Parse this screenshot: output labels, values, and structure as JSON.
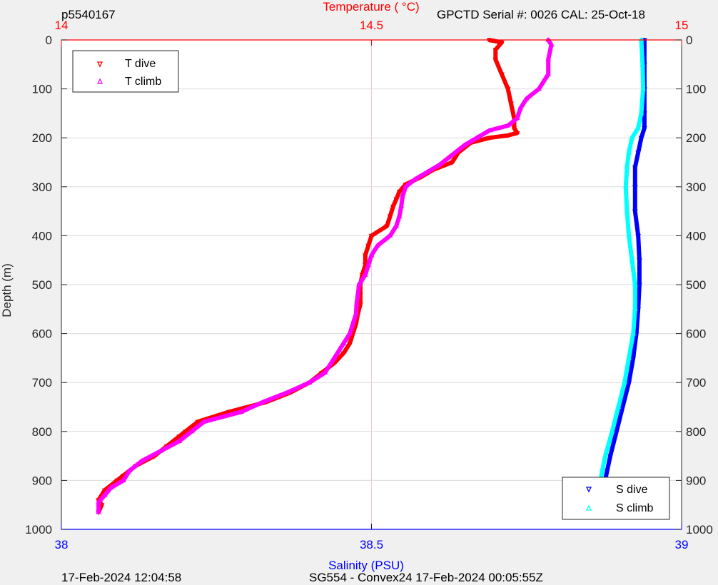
{
  "header": {
    "profile_id": "p5540167",
    "sensor_info": "GPCTD Serial #: 0026 CAL: 25-Oct-18"
  },
  "footer": {
    "plot_time": "17-Feb-2024 12:04:58",
    "mission": "SG554 - Convex24 17-Feb-2024 00:05:55Z"
  },
  "colors": {
    "t_dive": "#ff0000",
    "t_climb": "#ff00ff",
    "s_dive": "#0000ff",
    "s_climb": "#00ffff",
    "temperature_axis": "#ff0000",
    "salinity_axis": "#0000ff"
  },
  "chart_data": {
    "type": "line",
    "y_axis": {
      "label": "Depth (m)",
      "lim": [
        0,
        1000
      ],
      "reversed": true,
      "ticks": [
        0,
        100,
        200,
        300,
        400,
        500,
        600,
        700,
        800,
        900,
        1000
      ]
    },
    "x_top_axis": {
      "label": "Temperature (    °C)",
      "lim": [
        14,
        15
      ],
      "ticks": [
        14,
        14.5,
        15
      ],
      "tick_labels": [
        "14",
        "14.5",
        "15"
      ]
    },
    "x_bottom_axis": {
      "label": "Salinity (PSU)",
      "lim": [
        38,
        39
      ],
      "ticks": [
        38,
        38.5,
        39
      ],
      "tick_labels": [
        "38",
        "38.5",
        "39"
      ]
    },
    "grid": true,
    "legends": [
      {
        "position": "top-left",
        "entries": [
          "T dive",
          "T climb"
        ]
      },
      {
        "position": "bottom-right",
        "entries": [
          "S dive",
          "S climb"
        ]
      }
    ],
    "series": [
      {
        "name": "T dive",
        "axis": "temperature",
        "marker": "down-triangle",
        "points": [
          [
            14.69,
            0
          ],
          [
            14.71,
            5
          ],
          [
            14.7,
            20
          ],
          [
            14.7,
            40
          ],
          [
            14.71,
            70
          ],
          [
            14.72,
            100
          ],
          [
            14.725,
            130
          ],
          [
            14.73,
            160
          ],
          [
            14.73,
            180
          ],
          [
            14.735,
            190
          ],
          [
            14.72,
            195
          ],
          [
            14.69,
            200
          ],
          [
            14.66,
            210
          ],
          [
            14.64,
            230
          ],
          [
            14.63,
            250
          ],
          [
            14.6,
            265
          ],
          [
            14.58,
            280
          ],
          [
            14.555,
            295
          ],
          [
            14.545,
            310
          ],
          [
            14.54,
            325
          ],
          [
            14.535,
            340
          ],
          [
            14.53,
            360
          ],
          [
            14.525,
            380
          ],
          [
            14.5,
            400
          ],
          [
            14.495,
            420
          ],
          [
            14.49,
            440
          ],
          [
            14.49,
            460
          ],
          [
            14.485,
            480
          ],
          [
            14.482,
            500
          ],
          [
            14.482,
            520
          ],
          [
            14.482,
            540
          ],
          [
            14.478,
            560
          ],
          [
            14.475,
            580
          ],
          [
            14.47,
            600
          ],
          [
            14.465,
            620
          ],
          [
            14.455,
            640
          ],
          [
            14.44,
            660
          ],
          [
            14.42,
            680
          ],
          [
            14.4,
            700
          ],
          [
            14.37,
            720
          ],
          [
            14.33,
            740
          ],
          [
            14.27,
            760
          ],
          [
            14.22,
            780
          ],
          [
            14.2,
            800
          ],
          [
            14.19,
            810
          ],
          [
            14.17,
            830
          ],
          [
            14.15,
            850
          ],
          [
            14.12,
            870
          ],
          [
            14.1,
            890
          ],
          [
            14.09,
            900
          ],
          [
            14.07,
            920
          ],
          [
            14.06,
            940
          ],
          [
            14.065,
            950
          ],
          [
            14.06,
            965
          ]
        ]
      },
      {
        "name": "T climb",
        "axis": "temperature",
        "marker": "up-triangle",
        "points": [
          [
            14.785,
            0
          ],
          [
            14.79,
            10
          ],
          [
            14.785,
            40
          ],
          [
            14.785,
            70
          ],
          [
            14.77,
            100
          ],
          [
            14.75,
            120
          ],
          [
            14.74,
            140
          ],
          [
            14.735,
            160
          ],
          [
            14.72,
            175
          ],
          [
            14.69,
            185
          ],
          [
            14.67,
            200
          ],
          [
            14.65,
            215
          ],
          [
            14.625,
            240
          ],
          [
            14.61,
            255
          ],
          [
            14.59,
            270
          ],
          [
            14.57,
            285
          ],
          [
            14.555,
            300
          ],
          [
            14.55,
            320
          ],
          [
            14.548,
            340
          ],
          [
            14.545,
            360
          ],
          [
            14.54,
            380
          ],
          [
            14.53,
            400
          ],
          [
            14.51,
            420
          ],
          [
            14.5,
            440
          ],
          [
            14.495,
            460
          ],
          [
            14.49,
            480
          ],
          [
            14.48,
            500
          ],
          [
            14.478,
            520
          ],
          [
            14.476,
            540
          ],
          [
            14.475,
            560
          ],
          [
            14.47,
            580
          ],
          [
            14.465,
            600
          ],
          [
            14.455,
            620
          ],
          [
            14.44,
            650
          ],
          [
            14.425,
            680
          ],
          [
            14.4,
            700
          ],
          [
            14.365,
            720
          ],
          [
            14.325,
            740
          ],
          [
            14.29,
            760
          ],
          [
            14.23,
            780
          ],
          [
            14.21,
            800
          ],
          [
            14.19,
            820
          ],
          [
            14.16,
            840
          ],
          [
            14.13,
            860
          ],
          [
            14.11,
            880
          ],
          [
            14.1,
            900
          ],
          [
            14.08,
            915
          ],
          [
            14.07,
            930
          ],
          [
            14.06,
            945
          ],
          [
            14.06,
            965
          ]
        ]
      },
      {
        "name": "S dive",
        "axis": "salinity",
        "marker": "down-triangle",
        "points": [
          [
            38.94,
            0
          ],
          [
            38.94,
            50
          ],
          [
            38.94,
            100
          ],
          [
            38.94,
            150
          ],
          [
            38.94,
            180
          ],
          [
            38.935,
            200
          ],
          [
            38.93,
            230
          ],
          [
            38.925,
            260
          ],
          [
            38.925,
            300
          ],
          [
            38.925,
            350
          ],
          [
            38.93,
            400
          ],
          [
            38.932,
            450
          ],
          [
            38.932,
            500
          ],
          [
            38.93,
            550
          ],
          [
            38.927,
            600
          ],
          [
            38.922,
            650
          ],
          [
            38.915,
            700
          ],
          [
            38.905,
            750
          ],
          [
            38.895,
            800
          ],
          [
            38.885,
            850
          ],
          [
            38.88,
            880
          ],
          [
            38.875,
            910
          ],
          [
            38.87,
            940
          ],
          [
            38.865,
            965
          ]
        ]
      },
      {
        "name": "S climb",
        "axis": "salinity",
        "marker": "up-triangle",
        "points": [
          [
            38.935,
            0
          ],
          [
            38.937,
            50
          ],
          [
            38.938,
            100
          ],
          [
            38.935,
            150
          ],
          [
            38.93,
            180
          ],
          [
            38.92,
            200
          ],
          [
            38.915,
            230
          ],
          [
            38.912,
            260
          ],
          [
            38.91,
            300
          ],
          [
            38.912,
            350
          ],
          [
            38.915,
            400
          ],
          [
            38.92,
            450
          ],
          [
            38.925,
            500
          ],
          [
            38.925,
            550
          ],
          [
            38.922,
            600
          ],
          [
            38.915,
            650
          ],
          [
            38.908,
            700
          ],
          [
            38.898,
            750
          ],
          [
            38.888,
            800
          ],
          [
            38.877,
            850
          ],
          [
            38.872,
            880
          ],
          [
            38.868,
            910
          ],
          [
            38.865,
            940
          ],
          [
            38.862,
            965
          ]
        ]
      }
    ]
  }
}
